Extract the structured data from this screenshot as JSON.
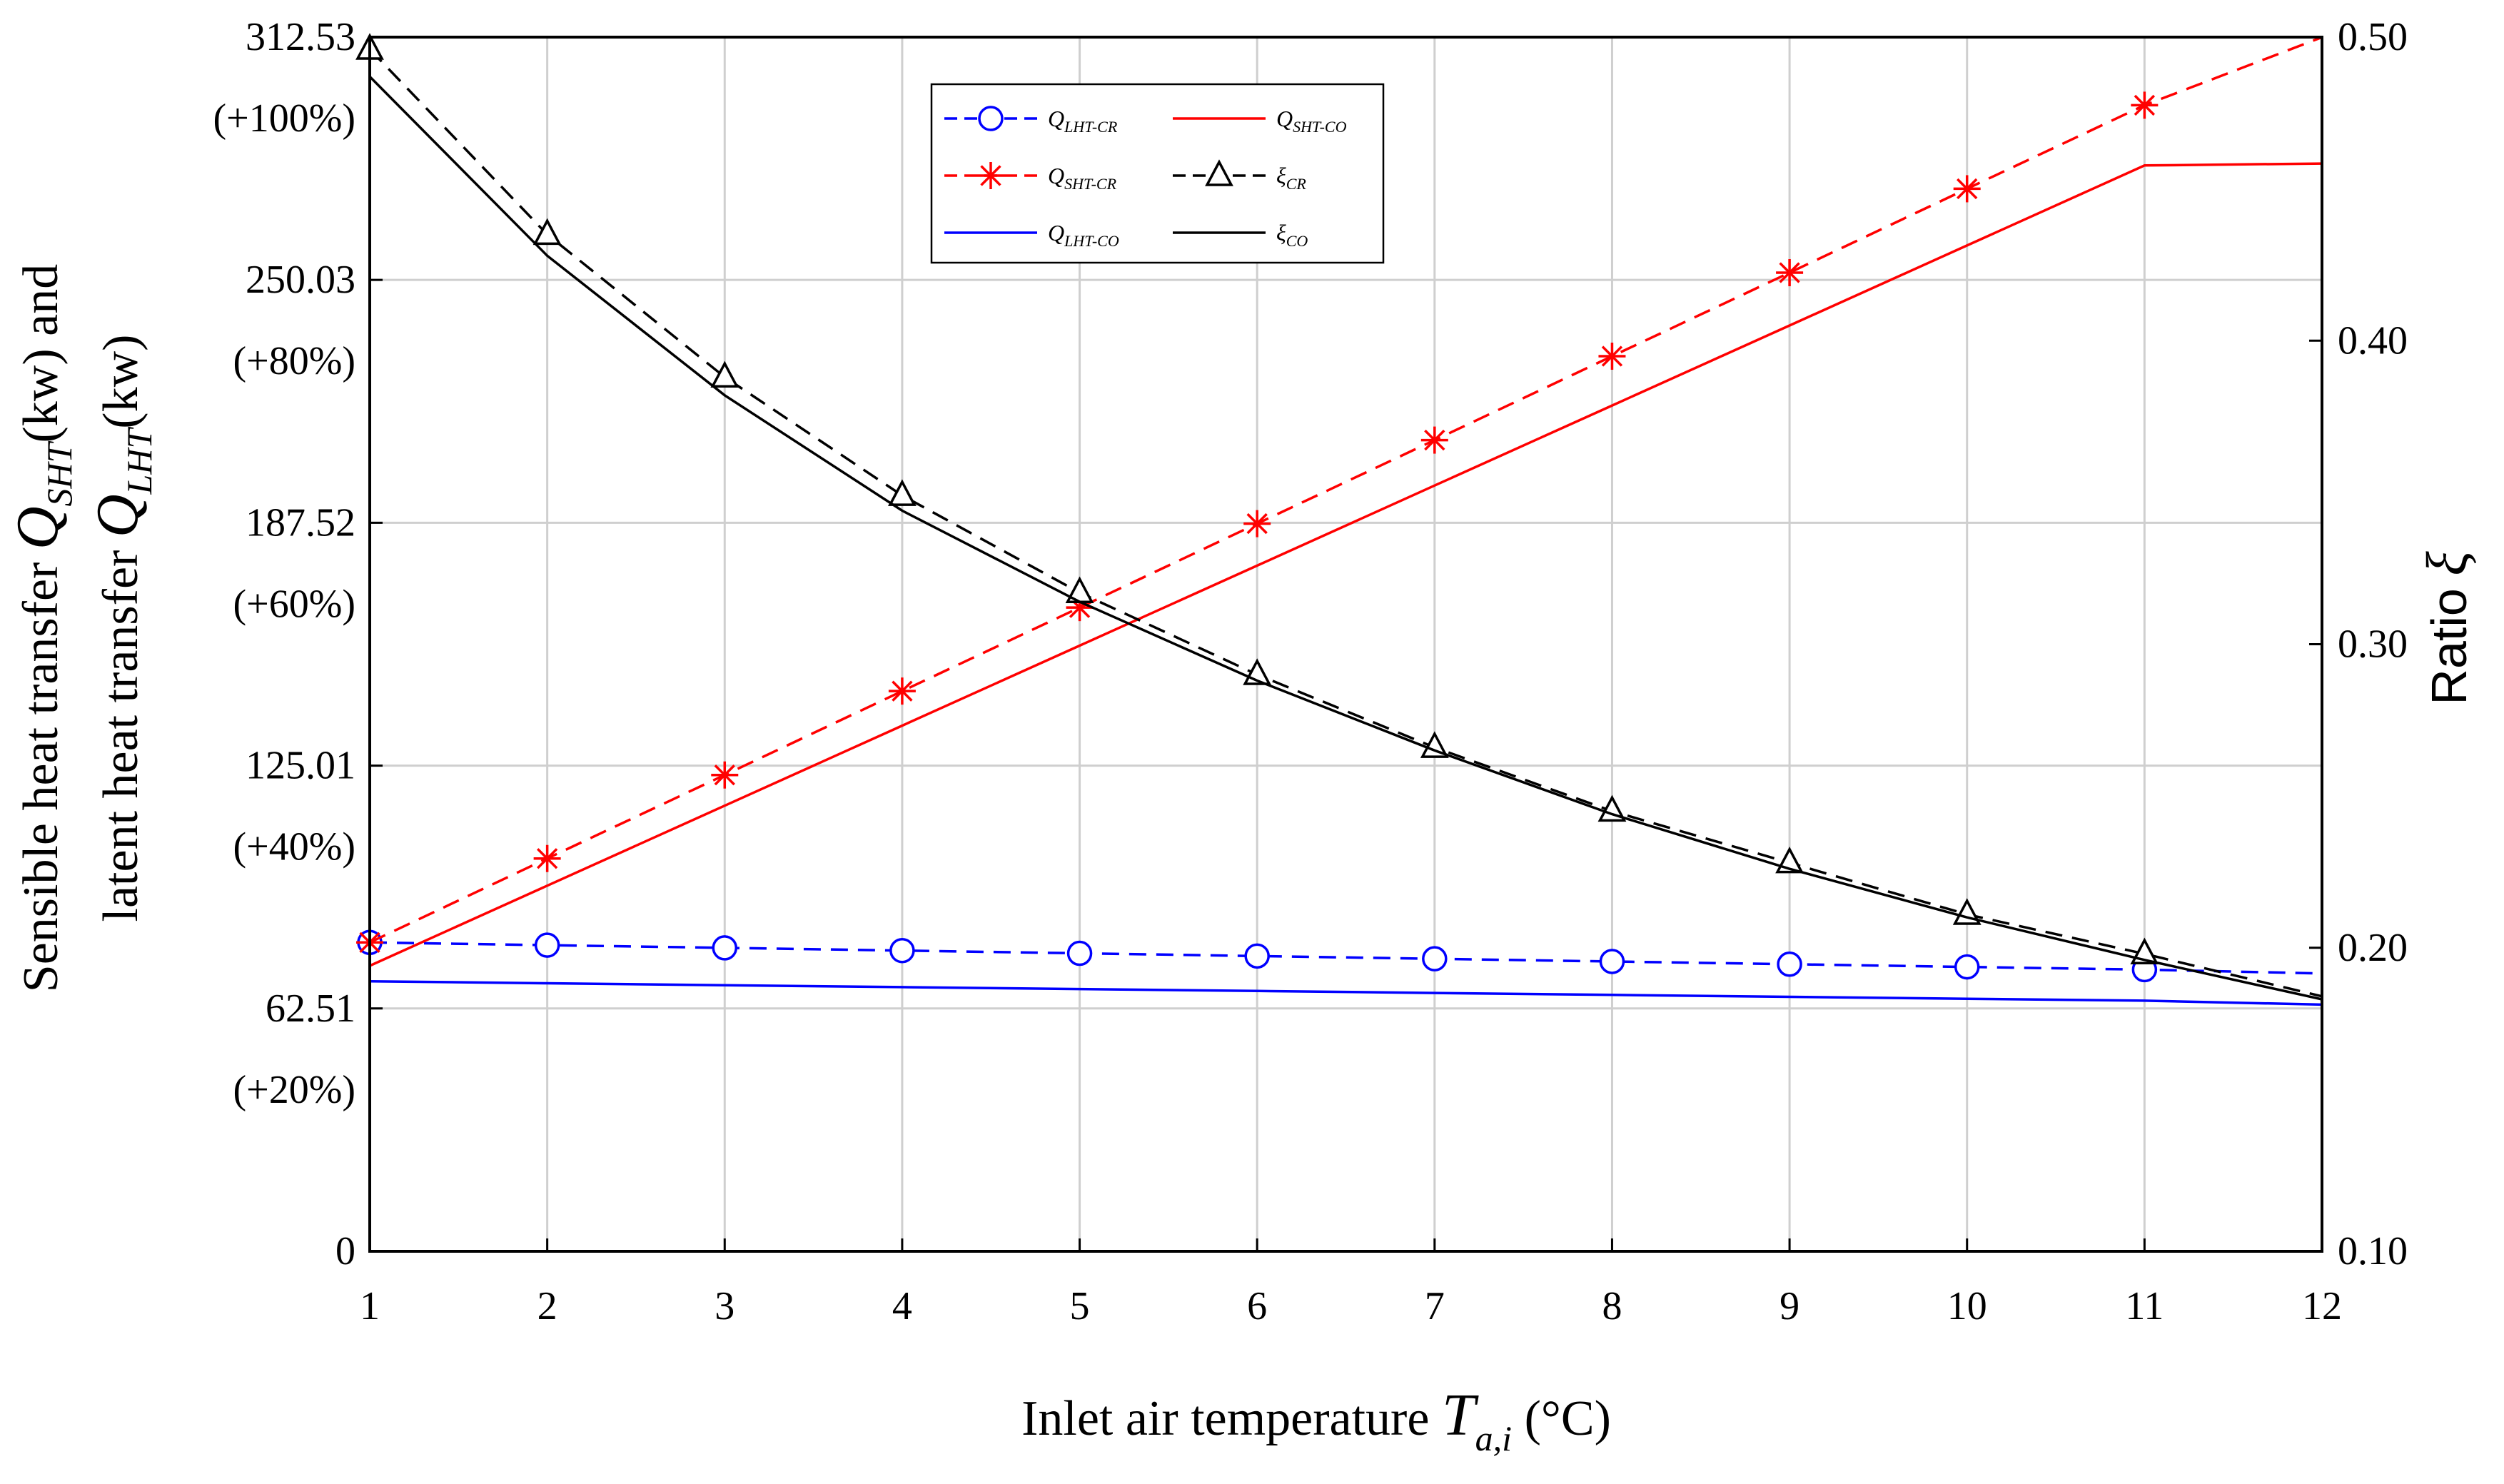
{
  "chart_data": {
    "type": "line",
    "x": [
      1,
      2,
      3,
      4,
      5,
      6,
      7,
      8,
      9,
      10,
      11,
      12
    ],
    "xlabel": "Inlet air temperature T_a,i (°C)",
    "xlabel_parts": {
      "prefix": "Inlet air temperature",
      "var": "T",
      "sub": "a,i",
      "unit": "(°C)"
    },
    "xlim": [
      1,
      12
    ],
    "x_ticks": [
      "1",
      "2",
      "3",
      "4",
      "5",
      "6",
      "7",
      "8",
      "9",
      "10",
      "11",
      "12"
    ],
    "ylabel_left": "Sensible heat transfer Q_SHT(kw) and latent heat transfer Q_LHT(kw)",
    "ylabel_left_parts": {
      "line1": {
        "prefix": "Sensible heat transfer",
        "var": "Q",
        "sub": "SHT",
        "unit": "(kw) and"
      },
      "line2": {
        "prefix": "latent heat transfer",
        "var": "Q",
        "sub": "LHT",
        "unit": "(kw)"
      }
    },
    "ylim_left": [
      0,
      312.53
    ],
    "y_left_ticks": [
      {
        "value": 0,
        "label": "0",
        "pct": ""
      },
      {
        "value": 62.51,
        "label": "62.51",
        "pct": "(+20%)"
      },
      {
        "value": 125.01,
        "label": "125.01",
        "pct": "(+40%)"
      },
      {
        "value": 187.52,
        "label": "187.52",
        "pct": "(+60%)"
      },
      {
        "value": 250.03,
        "label": "250.03",
        "pct": "(+80%)"
      },
      {
        "value": 312.53,
        "label": "312.53",
        "pct": "(+100%)"
      }
    ],
    "ylabel_right": "Ratio ξ",
    "ylabel_right_parts": {
      "prefix": "Ratio",
      "var": "ξ"
    },
    "ylim_right": [
      0.1,
      0.5
    ],
    "y_right_ticks": [
      "0.10",
      "0.20",
      "0.30",
      "0.40",
      "0.50"
    ],
    "grid": true,
    "legend_position": "top-center",
    "series": [
      {
        "id": "q_lht_cr",
        "name": "Q_LHT-CR",
        "sym": "Q",
        "sub": "LHT-CR",
        "axis": "left",
        "color": "#0000ff",
        "dash": "dashed",
        "marker": "circle",
        "values": [
          79.5,
          78.8,
          78.1,
          77.4,
          76.7,
          76.0,
          75.3,
          74.6,
          73.9,
          73.2,
          72.5,
          71.5
        ]
      },
      {
        "id": "q_sht_co",
        "name": "Q_SHT-CO",
        "sym": "Q",
        "sub": "SHT-CO",
        "axis": "left",
        "color": "#ff0000",
        "dash": "solid",
        "marker": "none",
        "values": [
          73.5,
          94.1,
          114.7,
          135.3,
          155.9,
          176.5,
          197.1,
          217.7,
          238.3,
          258.9,
          279.5,
          280.0
        ]
      },
      {
        "id": "q_sht_cr",
        "name": "Q_SHT-CR",
        "sym": "Q",
        "sub": "SHT-CR",
        "axis": "left",
        "color": "#ff0000",
        "dash": "dashed",
        "marker": "asterisk",
        "values": [
          79.5,
          101.1,
          122.6,
          144.2,
          165.7,
          187.3,
          208.8,
          230.4,
          251.9,
          273.5,
          295.0,
          312.5
        ]
      },
      {
        "id": "xi_cr",
        "name": "ξ_CR",
        "sym": "ξ",
        "sub": "CR",
        "axis": "right",
        "color": "#000000",
        "dash": "dashed",
        "marker": "triangle",
        "values": [
          0.496,
          0.435,
          0.388,
          0.349,
          0.317,
          0.29,
          0.266,
          0.245,
          0.228,
          0.211,
          0.198,
          0.184
        ]
      },
      {
        "id": "q_lht_co",
        "name": "Q_LHT-CO",
        "sym": "Q",
        "sub": "LHT-CO",
        "axis": "left",
        "color": "#0000ff",
        "dash": "solid",
        "marker": "none",
        "values": [
          69.5,
          69.0,
          68.5,
          68.0,
          67.5,
          67.0,
          66.5,
          66.0,
          65.5,
          65.0,
          64.5,
          63.5
        ]
      },
      {
        "id": "xi_co",
        "name": "ξ_CO",
        "sym": "ξ",
        "sub": "CO",
        "axis": "right",
        "color": "#000000",
        "dash": "solid",
        "marker": "none",
        "values": [
          0.487,
          0.428,
          0.382,
          0.344,
          0.314,
          0.288,
          0.265,
          0.244,
          0.226,
          0.21,
          0.196,
          0.183
        ]
      }
    ]
  }
}
